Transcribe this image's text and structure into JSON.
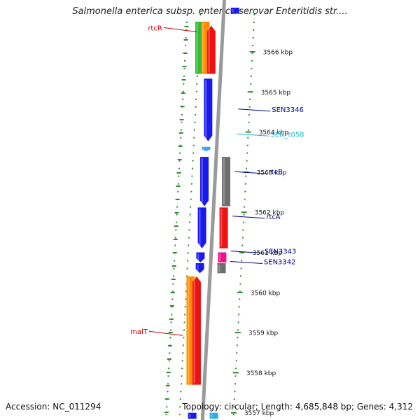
{
  "title": "Salmonella enterica subsp. enterica serovar Enteritidis str....",
  "footer": {
    "accession": "Accession: NC_011294",
    "topology": "Topology: circular; Length: 4,685,848 bp; Genes: 4,312"
  },
  "colors": {
    "backbone": "#9a9a9a",
    "tick": "#2e8b2e",
    "label_dark_blue": "#00008b",
    "label_red": "#cc0000",
    "label_cyan": "#1fb5d6",
    "blue": "#1a1aee",
    "red": "#ee1111",
    "orange": "#ff8c00",
    "gray": "#6e6e6e",
    "magenta": "#ee1188",
    "green": "#33bb33",
    "cyan": "#33aaee"
  },
  "scale": {
    "unit": "kbp",
    "ticks": [
      {
        "kbp": 3566,
        "label": "3566 kbp"
      },
      {
        "kbp": 3565,
        "label": "3565 kbp"
      },
      {
        "kbp": 3564,
        "label": "3564 kbp"
      },
      {
        "kbp": 3563,
        "label": "3563 kbp"
      },
      {
        "kbp": 3562,
        "label": "3562 kbp"
      },
      {
        "kbp": 3561,
        "label": "3561 kbp"
      },
      {
        "kbp": 3560,
        "label": "3560 kbp"
      },
      {
        "kbp": 3559,
        "label": "3559 kbp"
      },
      {
        "kbp": 3558,
        "label": "3558 kbp"
      },
      {
        "kbp": 3557,
        "label": "3557 kbp"
      }
    ]
  },
  "features": [
    {
      "id": "rtcR-green",
      "strand": "+",
      "ring": 2,
      "start": 3565.45,
      "end": 3566.75,
      "color": "green",
      "label": ""
    },
    {
      "id": "rtcR-orange",
      "strand": "+",
      "ring": 1,
      "start": 3565.45,
      "end": 3566.75,
      "color": "orange",
      "label": ""
    },
    {
      "id": "rtcR",
      "strand": "+",
      "ring": 0,
      "start": 3565.45,
      "end": 3566.65,
      "color": "red",
      "label": "rtcR",
      "label_color": "label_red",
      "label_kbp": 3566.55
    },
    {
      "id": "SEN3346",
      "strand": "+",
      "ring": 0,
      "start": 3563.77,
      "end": 3565.33,
      "color": "blue",
      "label": "SEN3346",
      "label_color": "label_dark_blue",
      "label_kbp": 3564.52
    },
    {
      "id": "SEN_t058",
      "strand": "+",
      "ring": 0,
      "start": 3563.52,
      "end": 3563.63,
      "color": "cyan",
      "label": "SEN_t058",
      "label_color": "label_cyan",
      "label_kbp": 3563.9
    },
    {
      "id": "rtcB",
      "strand": "+",
      "ring": 0,
      "start": 3562.15,
      "end": 3563.38,
      "color": "blue",
      "label": "rtcB",
      "label_color": "label_dark_blue",
      "label_kbp": 3562.96
    },
    {
      "id": "rtcB-gray",
      "strand": "-",
      "ring": 0,
      "start": 3562.15,
      "end": 3563.38,
      "color": "gray",
      "label": ""
    },
    {
      "id": "rtcA",
      "strand": "+",
      "ring": 0,
      "start": 3561.1,
      "end": 3562.12,
      "color": "blue",
      "label": "rtcA",
      "label_color": "label_dark_blue",
      "label_kbp": 3561.85
    },
    {
      "id": "rtcA-red",
      "strand": "-",
      "ring": 0,
      "start": 3561.1,
      "end": 3562.12,
      "color": "red",
      "label": ""
    },
    {
      "id": "SEN3343",
      "strand": "+",
      "ring": 0,
      "start": 3560.75,
      "end": 3561.0,
      "color": "blue",
      "label": "SEN3343",
      "label_color": "label_dark_blue",
      "label_kbp": 3560.98
    },
    {
      "id": "SEN3343-magenta",
      "strand": "-",
      "ring": 0,
      "start": 3560.75,
      "end": 3561.0,
      "color": "magenta",
      "label": ""
    },
    {
      "id": "SEN3342",
      "strand": "+",
      "ring": 0,
      "start": 3560.48,
      "end": 3560.73,
      "color": "blue",
      "label": "SEN3342",
      "label_color": "label_dark_blue",
      "label_kbp": 3560.72
    },
    {
      "id": "SEN3342-gray",
      "strand": "-",
      "ring": 0,
      "start": 3560.48,
      "end": 3560.73,
      "color": "gray",
      "label": ""
    },
    {
      "id": "malT-orange",
      "strand": "+",
      "ring": 1,
      "start": 3557.7,
      "end": 3560.4,
      "color": "orange",
      "label": ""
    },
    {
      "id": "malT",
      "strand": "+",
      "ring": 0,
      "start": 3557.7,
      "end": 3560.4,
      "color": "red",
      "label": "malT",
      "label_color": "label_red",
      "label_kbp": 3558.98
    },
    {
      "id": "bottom-blue",
      "strand": "+",
      "ring": 0,
      "start": 3556.85,
      "end": 3557.0,
      "color": "blue",
      "label": ""
    },
    {
      "id": "bottom-cyan",
      "strand": "-",
      "ring": 0,
      "start": 3556.85,
      "end": 3557.0,
      "color": "cyan",
      "label": ""
    },
    {
      "id": "top-blue",
      "strand": "-",
      "ring": 0,
      "start": 3566.95,
      "end": 3567.1,
      "color": "blue",
      "label": ""
    }
  ]
}
